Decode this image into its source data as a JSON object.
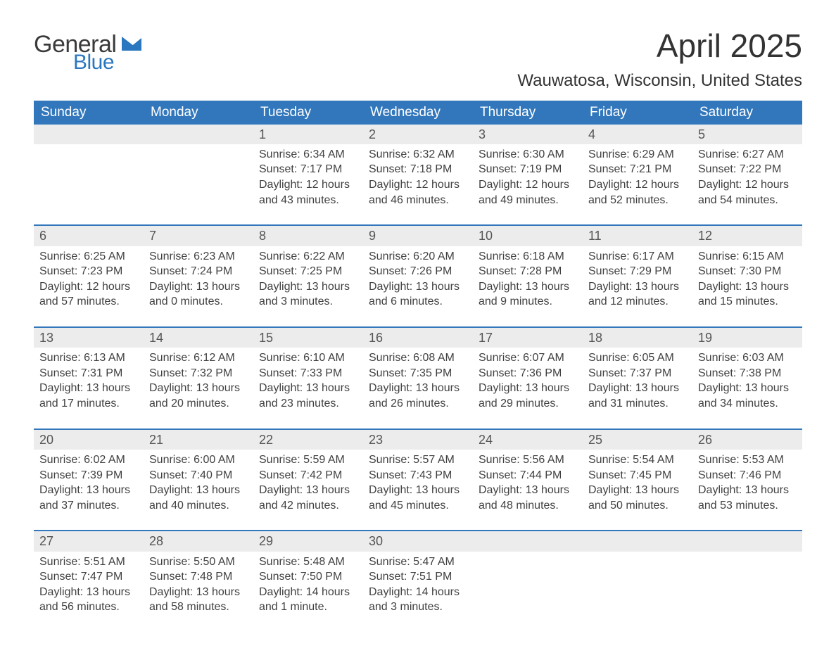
{
  "brand": {
    "word1": "General",
    "word2": "Blue",
    "word1_color": "#3a3a3a",
    "word2_color": "#2b77bf",
    "flag_color": "#2b77bf"
  },
  "header": {
    "month_title": "April 2025",
    "location": "Wauwatosa, Wisconsin, United States"
  },
  "colors": {
    "header_bg": "#3277bb",
    "header_text": "#ffffff",
    "daynum_bg": "#ececec",
    "row_divider": "#3277bb",
    "body_text": "#414141",
    "page_bg": "#ffffff"
  },
  "typography": {
    "title_fontsize": 46,
    "location_fontsize": 24,
    "weekday_fontsize": 19,
    "daynum_fontsize": 18,
    "body_fontsize": 16,
    "font_family": "Segoe UI"
  },
  "layout": {
    "columns": 7,
    "rows": 5,
    "leading_blanks": 2,
    "days_in_month": 30
  },
  "weekdays": [
    "Sunday",
    "Monday",
    "Tuesday",
    "Wednesday",
    "Thursday",
    "Friday",
    "Saturday"
  ],
  "days": [
    {
      "n": 1,
      "sunrise": "6:34 AM",
      "sunset": "7:17 PM",
      "daylight": "12 hours and 43 minutes."
    },
    {
      "n": 2,
      "sunrise": "6:32 AM",
      "sunset": "7:18 PM",
      "daylight": "12 hours and 46 minutes."
    },
    {
      "n": 3,
      "sunrise": "6:30 AM",
      "sunset": "7:19 PM",
      "daylight": "12 hours and 49 minutes."
    },
    {
      "n": 4,
      "sunrise": "6:29 AM",
      "sunset": "7:21 PM",
      "daylight": "12 hours and 52 minutes."
    },
    {
      "n": 5,
      "sunrise": "6:27 AM",
      "sunset": "7:22 PM",
      "daylight": "12 hours and 54 minutes."
    },
    {
      "n": 6,
      "sunrise": "6:25 AM",
      "sunset": "7:23 PM",
      "daylight": "12 hours and 57 minutes."
    },
    {
      "n": 7,
      "sunrise": "6:23 AM",
      "sunset": "7:24 PM",
      "daylight": "13 hours and 0 minutes."
    },
    {
      "n": 8,
      "sunrise": "6:22 AM",
      "sunset": "7:25 PM",
      "daylight": "13 hours and 3 minutes."
    },
    {
      "n": 9,
      "sunrise": "6:20 AM",
      "sunset": "7:26 PM",
      "daylight": "13 hours and 6 minutes."
    },
    {
      "n": 10,
      "sunrise": "6:18 AM",
      "sunset": "7:28 PM",
      "daylight": "13 hours and 9 minutes."
    },
    {
      "n": 11,
      "sunrise": "6:17 AM",
      "sunset": "7:29 PM",
      "daylight": "13 hours and 12 minutes."
    },
    {
      "n": 12,
      "sunrise": "6:15 AM",
      "sunset": "7:30 PM",
      "daylight": "13 hours and 15 minutes."
    },
    {
      "n": 13,
      "sunrise": "6:13 AM",
      "sunset": "7:31 PM",
      "daylight": "13 hours and 17 minutes."
    },
    {
      "n": 14,
      "sunrise": "6:12 AM",
      "sunset": "7:32 PM",
      "daylight": "13 hours and 20 minutes."
    },
    {
      "n": 15,
      "sunrise": "6:10 AM",
      "sunset": "7:33 PM",
      "daylight": "13 hours and 23 minutes."
    },
    {
      "n": 16,
      "sunrise": "6:08 AM",
      "sunset": "7:35 PM",
      "daylight": "13 hours and 26 minutes."
    },
    {
      "n": 17,
      "sunrise": "6:07 AM",
      "sunset": "7:36 PM",
      "daylight": "13 hours and 29 minutes."
    },
    {
      "n": 18,
      "sunrise": "6:05 AM",
      "sunset": "7:37 PM",
      "daylight": "13 hours and 31 minutes."
    },
    {
      "n": 19,
      "sunrise": "6:03 AM",
      "sunset": "7:38 PM",
      "daylight": "13 hours and 34 minutes."
    },
    {
      "n": 20,
      "sunrise": "6:02 AM",
      "sunset": "7:39 PM",
      "daylight": "13 hours and 37 minutes."
    },
    {
      "n": 21,
      "sunrise": "6:00 AM",
      "sunset": "7:40 PM",
      "daylight": "13 hours and 40 minutes."
    },
    {
      "n": 22,
      "sunrise": "5:59 AM",
      "sunset": "7:42 PM",
      "daylight": "13 hours and 42 minutes."
    },
    {
      "n": 23,
      "sunrise": "5:57 AM",
      "sunset": "7:43 PM",
      "daylight": "13 hours and 45 minutes."
    },
    {
      "n": 24,
      "sunrise": "5:56 AM",
      "sunset": "7:44 PM",
      "daylight": "13 hours and 48 minutes."
    },
    {
      "n": 25,
      "sunrise": "5:54 AM",
      "sunset": "7:45 PM",
      "daylight": "13 hours and 50 minutes."
    },
    {
      "n": 26,
      "sunrise": "5:53 AM",
      "sunset": "7:46 PM",
      "daylight": "13 hours and 53 minutes."
    },
    {
      "n": 27,
      "sunrise": "5:51 AM",
      "sunset": "7:47 PM",
      "daylight": "13 hours and 56 minutes."
    },
    {
      "n": 28,
      "sunrise": "5:50 AM",
      "sunset": "7:48 PM",
      "daylight": "13 hours and 58 minutes."
    },
    {
      "n": 29,
      "sunrise": "5:48 AM",
      "sunset": "7:50 PM",
      "daylight": "14 hours and 1 minute."
    },
    {
      "n": 30,
      "sunrise": "5:47 AM",
      "sunset": "7:51 PM",
      "daylight": "14 hours and 3 minutes."
    }
  ],
  "labels": {
    "sunrise_prefix": "Sunrise: ",
    "sunset_prefix": "Sunset: ",
    "daylight_prefix": "Daylight: "
  }
}
